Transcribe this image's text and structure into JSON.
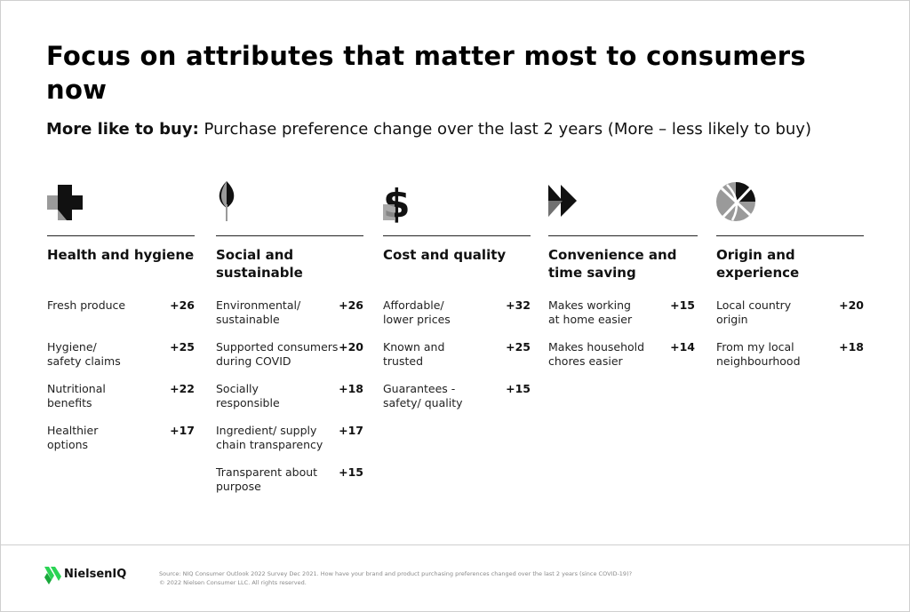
{
  "title": "Focus on attributes that matter most to consumers now",
  "subtitle": {
    "bold": "More like to buy:",
    "rest": " Purchase preference change over the last 2 years (More – less likely to buy)"
  },
  "colors": {
    "accent_green": "#2bd454",
    "dark": "#111111",
    "gray": "#8a8a8a"
  },
  "columns": [
    {
      "icon": "cross-icon",
      "heading": "Health and hygiene",
      "items": [
        {
          "label": "Fresh produce",
          "value": "+26"
        },
        {
          "label": "Hygiene/\nsafety claims",
          "value": "+25"
        },
        {
          "label": "Nutritional\nbenefits",
          "value": "+22"
        },
        {
          "label": "Healthier\noptions",
          "value": "+17"
        }
      ]
    },
    {
      "icon": "leaf-icon",
      "heading": "Social and\nsustainable",
      "items": [
        {
          "label": "Environmental/\nsustainable",
          "value": "+26"
        },
        {
          "label": "Supported consumers\nduring COVID",
          "value": "+20"
        },
        {
          "label": "Socially\nresponsible",
          "value": "+18"
        },
        {
          "label": "Ingredient/ supply\nchain transparency",
          "value": "+17"
        },
        {
          "label": "Transparent about\npurpose",
          "value": "+15"
        }
      ]
    },
    {
      "icon": "dollar-icon",
      "heading": "Cost and quality",
      "items": [
        {
          "label": "Affordable/\nlower prices",
          "value": "+32"
        },
        {
          "label": "Known and\ntrusted",
          "value": "+25"
        },
        {
          "label": "Guarantees -\nsafety/ quality",
          "value": "+15"
        }
      ]
    },
    {
      "icon": "fast-forward-icon",
      "heading": "Convenience and\ntime saving",
      "items": [
        {
          "label": "Makes working\nat home easier",
          "value": "+15"
        },
        {
          "label": "Makes household\nchores easier",
          "value": "+14"
        }
      ]
    },
    {
      "icon": "globe-icon",
      "heading": "Origin and\nexperience",
      "items": [
        {
          "label": "Local country\norigin",
          "value": "+20"
        },
        {
          "label": "From my local\nneighbourhood",
          "value": "+18"
        }
      ]
    }
  ],
  "footer": {
    "logo_text": "NielsenIQ",
    "source_line": "Source: NIQ Consumer Outlook 2022 Survey Dec 2021. How have your brand and product purchasing preferences changed over the last 2 years (since COVID-19)?",
    "copyright_line": "© 2022 Nielsen Consumer LLC. All rights reserved."
  }
}
